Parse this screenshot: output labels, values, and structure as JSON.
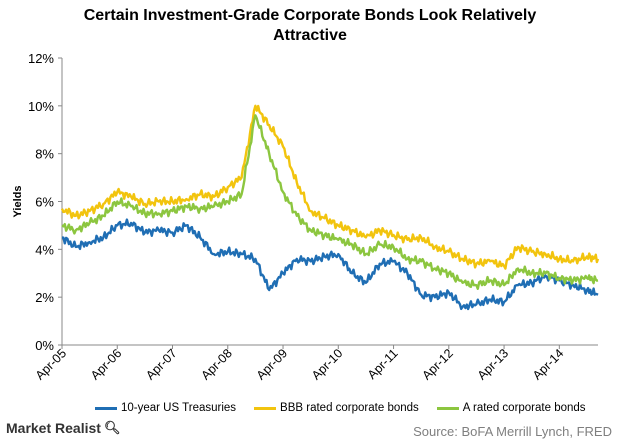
{
  "title_line1": "Certain Investment-Grade Corporate Bonds Look Relatively",
  "title_line2": "Attractive",
  "brand": "Market Realist",
  "brand_icon": "magnifier-icon",
  "source": "Source: BoFA Merrill Lynch, FRED",
  "chart_data": {
    "type": "line",
    "title": "Certain Investment-Grade Corporate Bonds Look Relatively Attractive",
    "xlabel": "",
    "ylabel": "Yields",
    "ylim": [
      0,
      12
    ],
    "yticks": [
      0,
      2,
      4,
      6,
      8,
      10,
      12
    ],
    "ytick_labels": [
      "0%",
      "2%",
      "4%",
      "6%",
      "8%",
      "10%",
      "12%"
    ],
    "x_range": [
      2005.25,
      2014.95
    ],
    "x_ticks": [
      2005.25,
      2006.25,
      2007.25,
      2008.25,
      2009.25,
      2010.25,
      2011.25,
      2012.25,
      2013.25,
      2014.25
    ],
    "x_tick_labels": [
      "Apr-05",
      "Apr-06",
      "Apr-07",
      "Apr-08",
      "Apr-09",
      "Apr-10",
      "Apr-11",
      "Apr-12",
      "Apr-13",
      "Apr-14"
    ],
    "grid": false,
    "legend_position": "bottom",
    "series": [
      {
        "name": "10-year US Treasuries",
        "color": "#1f6eb4",
        "x": [
          2005.25,
          2005.5,
          2005.75,
          2006.0,
          2006.25,
          2006.5,
          2006.75,
          2007.0,
          2007.25,
          2007.5,
          2007.75,
          2008.0,
          2008.25,
          2008.5,
          2008.75,
          2009.0,
          2009.25,
          2009.5,
          2009.75,
          2010.0,
          2010.25,
          2010.5,
          2010.75,
          2011.0,
          2011.25,
          2011.5,
          2011.75,
          2012.0,
          2012.25,
          2012.5,
          2012.75,
          2013.0,
          2013.25,
          2013.5,
          2013.75,
          2014.0,
          2014.25,
          2014.5,
          2014.75,
          2014.95
        ],
        "values": [
          4.5,
          4.1,
          4.3,
          4.5,
          5.0,
          5.1,
          4.7,
          4.8,
          4.7,
          5.0,
          4.5,
          3.8,
          3.9,
          3.8,
          3.6,
          2.3,
          3.0,
          3.6,
          3.5,
          3.7,
          3.8,
          3.0,
          2.6,
          3.4,
          3.5,
          3.0,
          2.1,
          2.0,
          2.2,
          1.6,
          1.7,
          1.9,
          1.8,
          2.5,
          2.6,
          2.9,
          2.7,
          2.5,
          2.3,
          2.1
        ]
      },
      {
        "name": "BBB rated corporate bonds",
        "color": "#f2c40e",
        "x": [
          2005.25,
          2005.5,
          2005.75,
          2006.0,
          2006.25,
          2006.5,
          2006.75,
          2007.0,
          2007.25,
          2007.5,
          2007.75,
          2008.0,
          2008.25,
          2008.5,
          2008.75,
          2009.0,
          2009.25,
          2009.5,
          2009.75,
          2010.0,
          2010.25,
          2010.5,
          2010.75,
          2011.0,
          2011.25,
          2011.5,
          2011.75,
          2012.0,
          2012.25,
          2012.5,
          2012.75,
          2013.0,
          2013.25,
          2013.5,
          2013.75,
          2014.0,
          2014.25,
          2014.5,
          2014.75,
          2014.95
        ],
        "values": [
          5.7,
          5.4,
          5.6,
          5.9,
          6.4,
          6.2,
          5.9,
          6.0,
          6.0,
          6.1,
          6.3,
          6.2,
          6.6,
          7.0,
          10.0,
          9.2,
          8.3,
          6.8,
          5.6,
          5.3,
          5.0,
          4.8,
          4.5,
          4.8,
          4.6,
          4.4,
          4.5,
          4.1,
          3.9,
          3.6,
          3.4,
          3.5,
          3.3,
          4.1,
          3.9,
          3.8,
          3.6,
          3.5,
          3.7,
          3.6
        ]
      },
      {
        "name": "A rated corporate bonds",
        "color": "#8cc63f",
        "x": [
          2005.25,
          2005.5,
          2005.75,
          2006.0,
          2006.25,
          2006.5,
          2006.75,
          2007.0,
          2007.25,
          2007.5,
          2007.75,
          2008.0,
          2008.25,
          2008.5,
          2008.75,
          2009.0,
          2009.25,
          2009.5,
          2009.75,
          2010.0,
          2010.25,
          2010.5,
          2010.75,
          2011.0,
          2011.25,
          2011.5,
          2011.75,
          2012.0,
          2012.25,
          2012.5,
          2012.75,
          2013.0,
          2013.25,
          2013.5,
          2013.75,
          2014.0,
          2014.25,
          2014.5,
          2014.75,
          2014.95
        ],
        "values": [
          5.0,
          4.8,
          5.1,
          5.4,
          6.0,
          5.8,
          5.5,
          5.5,
          5.6,
          5.8,
          5.7,
          5.8,
          6.0,
          6.3,
          9.6,
          8.0,
          6.4,
          5.4,
          4.8,
          4.6,
          4.4,
          4.2,
          3.8,
          4.2,
          4.1,
          3.6,
          3.5,
          3.2,
          3.0,
          2.6,
          2.5,
          2.7,
          2.5,
          3.2,
          3.0,
          3.0,
          2.8,
          2.7,
          2.8,
          2.7
        ]
      }
    ]
  }
}
